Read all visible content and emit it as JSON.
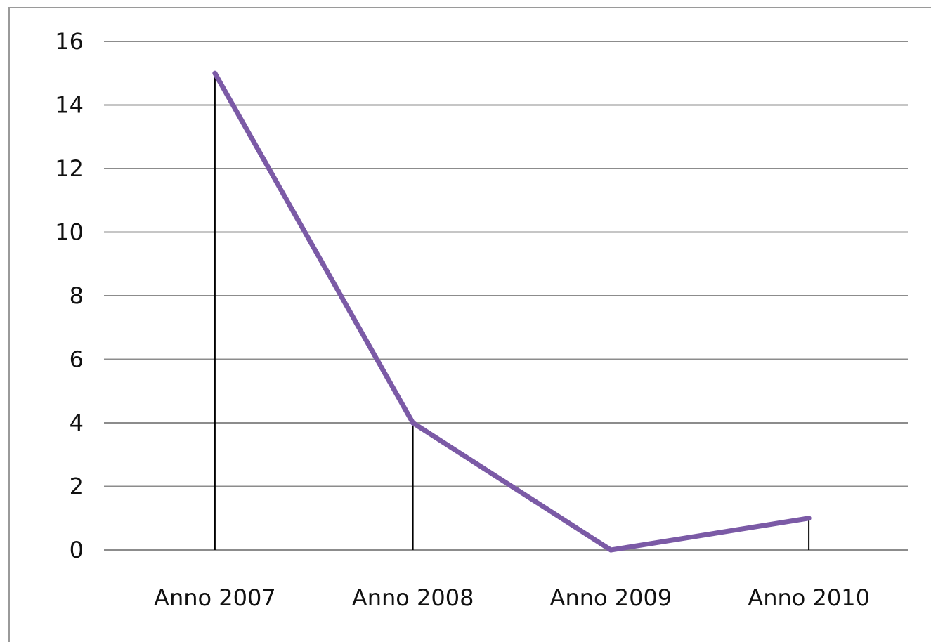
{
  "chart_data": {
    "type": "line",
    "title": "",
    "xlabel": "",
    "ylabel": "",
    "categories": [
      "Anno 2007",
      "Anno 2008",
      "Anno 2009",
      "Anno 2010"
    ],
    "series": [
      {
        "values": [
          15,
          4,
          0,
          1
        ],
        "color": "#7b5aa6"
      }
    ],
    "ylim": [
      0,
      16
    ],
    "yticks": [
      0,
      2,
      4,
      6,
      8,
      10,
      12,
      14,
      16
    ],
    "grid": true,
    "legend": "none",
    "drop_lines": true,
    "gridline_color": "#8c8c8c",
    "drop_line_color": "#000000"
  }
}
